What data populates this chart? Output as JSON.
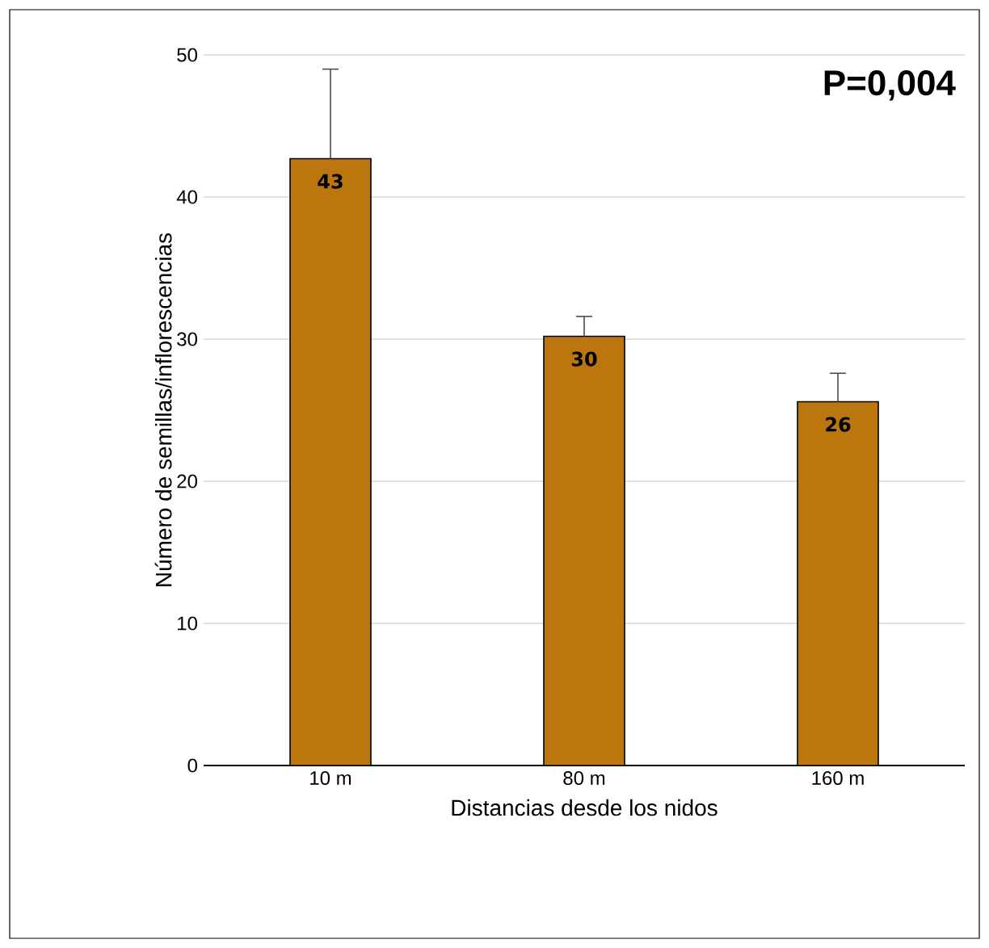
{
  "chart_data": {
    "type": "bar",
    "xlabel": "Distancias desde los nidos",
    "ylabel": "Número de semillas/inflorescencias",
    "categories": [
      "10 m",
      "80 m",
      "160 m"
    ],
    "values": [
      42.7,
      30.2,
      25.6
    ],
    "errors": [
      [
        42.7,
        49.0
      ],
      [
        30.2,
        31.6
      ],
      [
        25.6,
        27.6
      ]
    ],
    "value_labels": [
      "43",
      "30",
      "26"
    ],
    "color": "#bb760e",
    "ylim": [
      0,
      50
    ],
    "yticks": [
      0,
      10,
      20,
      30,
      40,
      50
    ],
    "grid": "y",
    "annotations": [
      "P=0,004"
    ]
  }
}
